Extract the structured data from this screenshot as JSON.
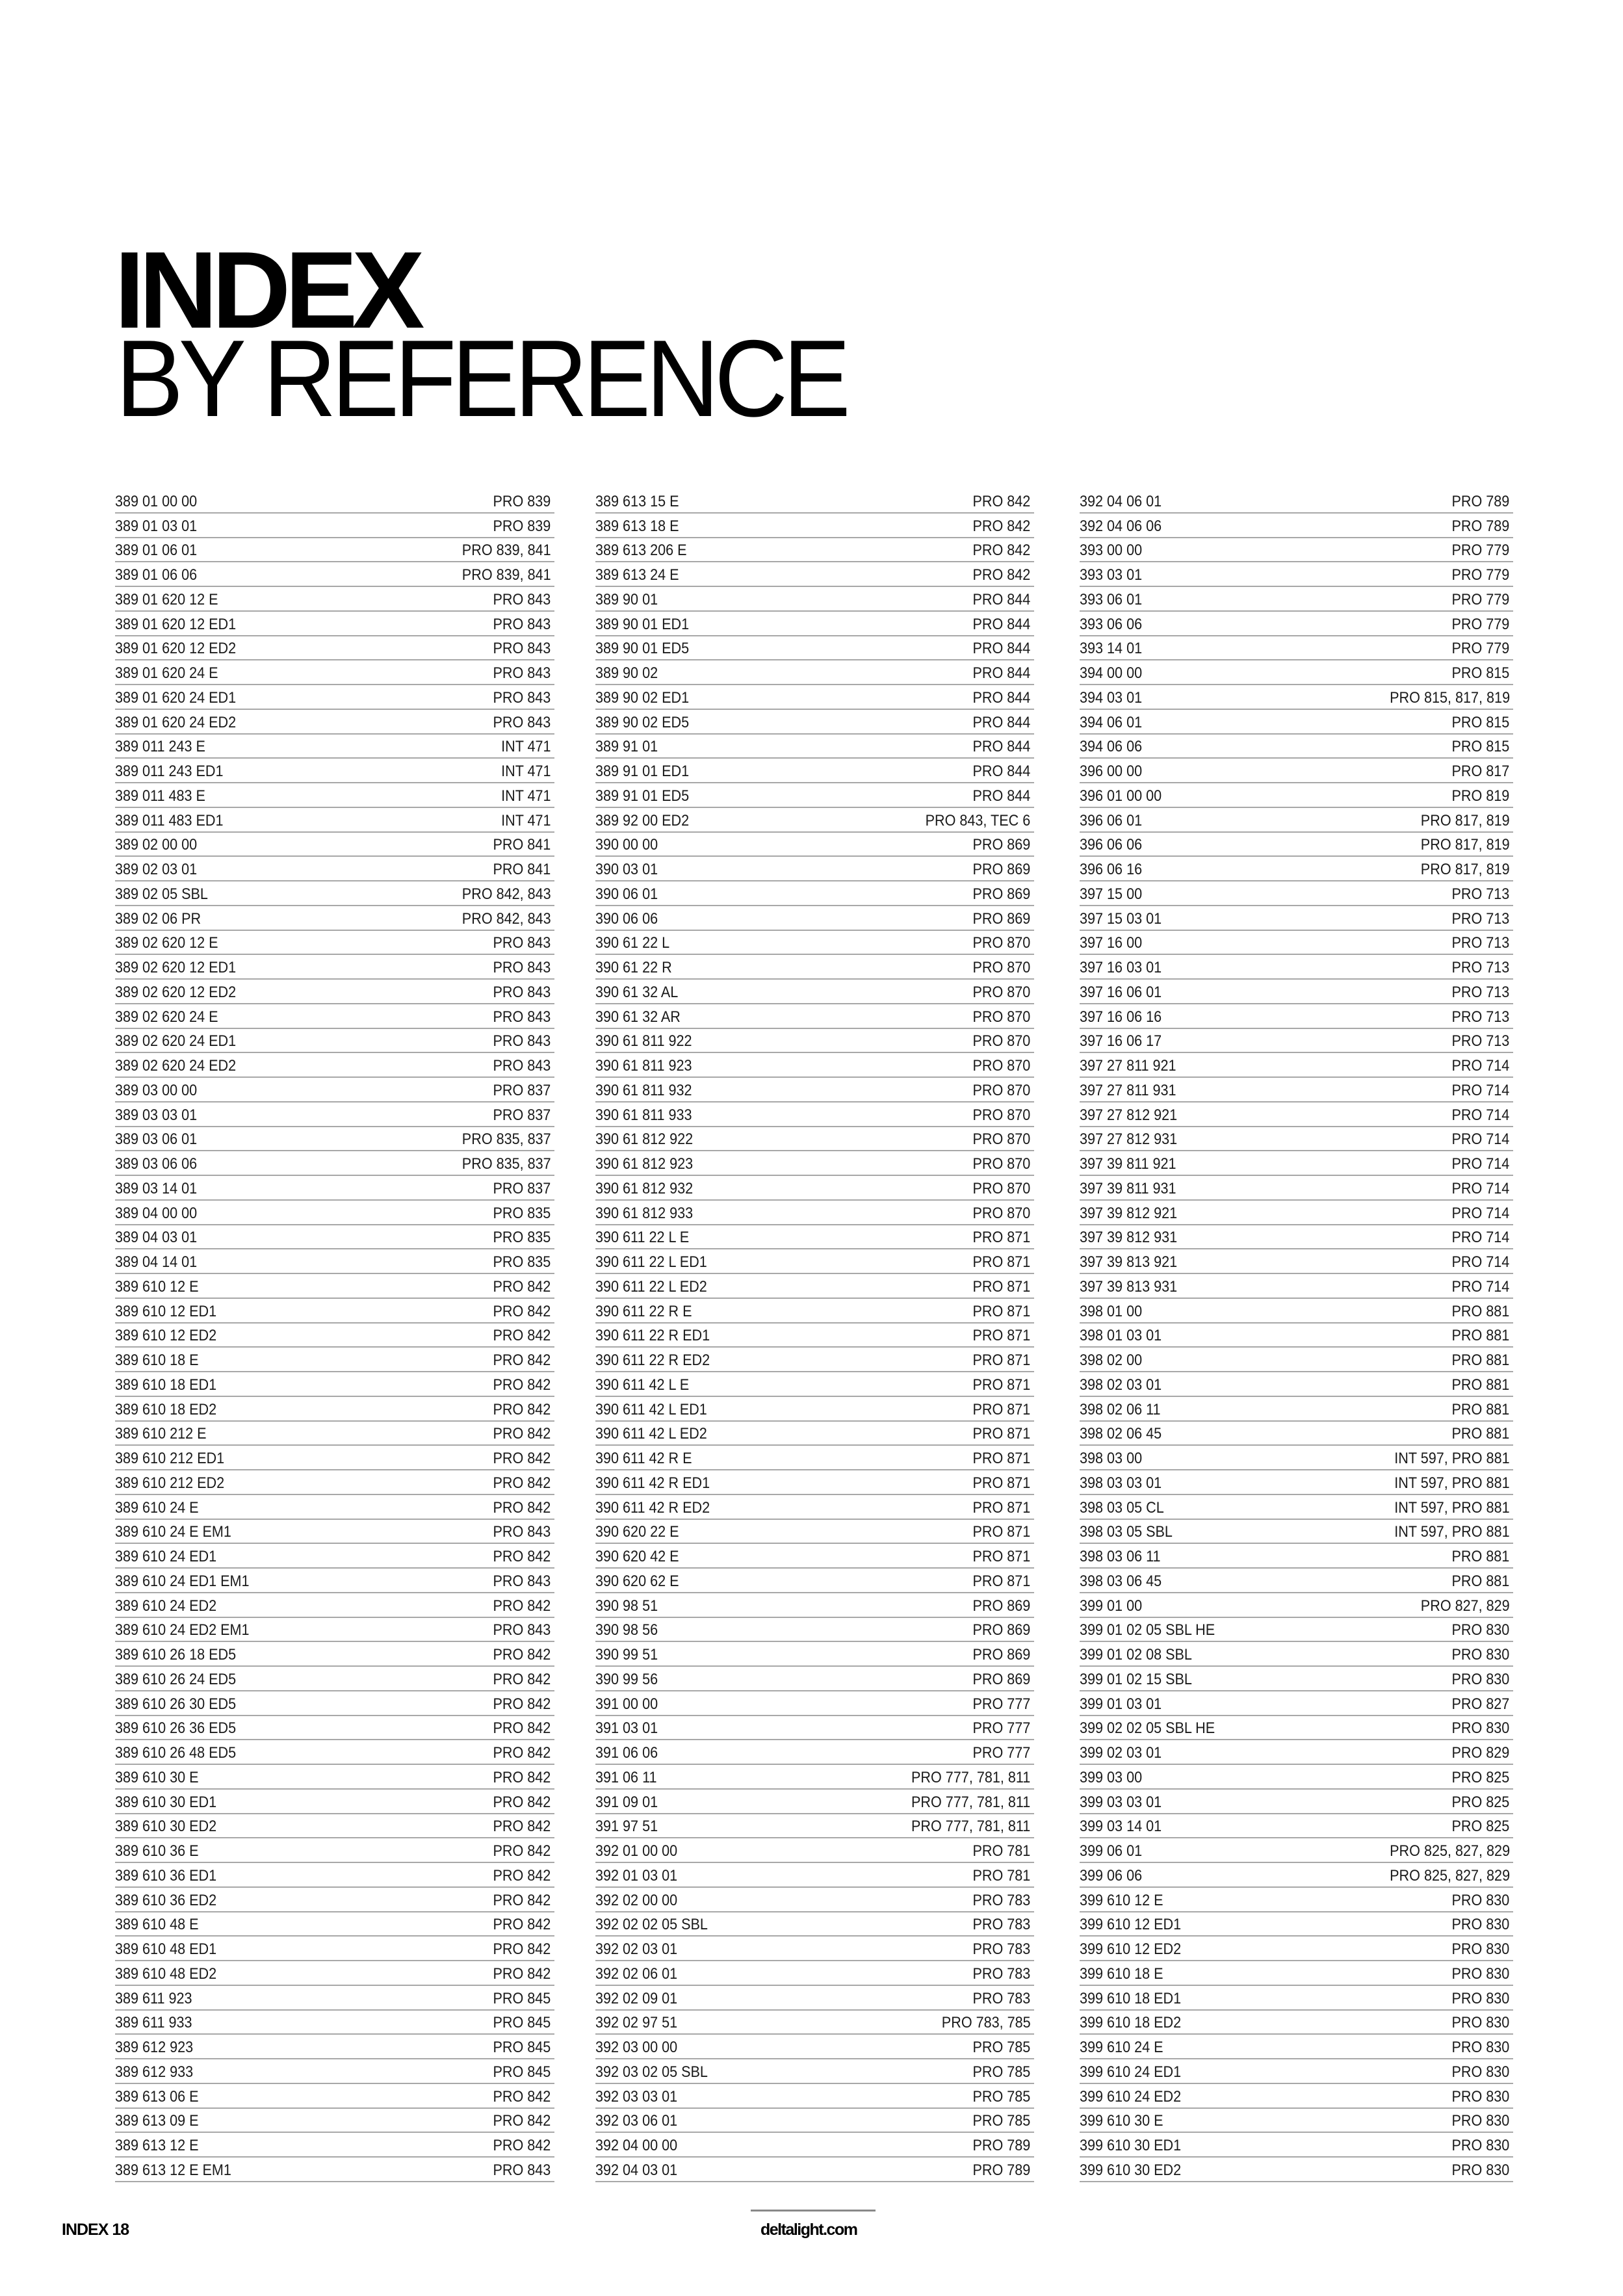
{
  "header": {
    "title_bold": "INDEX",
    "title_light": "BY REFERENCE"
  },
  "columns": [
    [
      [
        "389 01 00 00",
        "PRO 839"
      ],
      [
        "389 01 03 01",
        "PRO 839"
      ],
      [
        "389 01 06 01",
        "PRO 839, 841"
      ],
      [
        "389 01 06 06",
        "PRO 839, 841"
      ],
      [
        "389 01 620 12 E",
        "PRO 843"
      ],
      [
        "389 01 620 12 ED1",
        "PRO 843"
      ],
      [
        "389 01 620 12 ED2",
        "PRO 843"
      ],
      [
        "389 01 620 24 E",
        "PRO 843"
      ],
      [
        "389 01 620 24 ED1",
        "PRO 843"
      ],
      [
        "389 01 620 24 ED2",
        "PRO 843"
      ],
      [
        "389 011 243 E",
        "INT 471"
      ],
      [
        "389 011 243 ED1",
        "INT 471"
      ],
      [
        "389 011 483 E",
        "INT 471"
      ],
      [
        "389 011 483 ED1",
        "INT 471"
      ],
      [
        "389 02 00 00",
        "PRO 841"
      ],
      [
        "389 02 03 01",
        "PRO 841"
      ],
      [
        "389 02 05 SBL",
        "PRO 842, 843"
      ],
      [
        "389 02 06 PR",
        "PRO 842, 843"
      ],
      [
        "389 02 620 12 E",
        "PRO 843"
      ],
      [
        "389 02 620 12 ED1",
        "PRO 843"
      ],
      [
        "389 02 620 12 ED2",
        "PRO 843"
      ],
      [
        "389 02 620 24 E",
        "PRO 843"
      ],
      [
        "389 02 620 24 ED1",
        "PRO 843"
      ],
      [
        "389 02 620 24 ED2",
        "PRO 843"
      ],
      [
        "389 03 00 00",
        "PRO 837"
      ],
      [
        "389 03 03 01",
        "PRO 837"
      ],
      [
        "389 03 06 01",
        "PRO 835, 837"
      ],
      [
        "389 03 06 06",
        "PRO 835, 837"
      ],
      [
        "389 03 14 01",
        "PRO 837"
      ],
      [
        "389 04 00 00",
        "PRO 835"
      ],
      [
        "389 04 03 01",
        "PRO 835"
      ],
      [
        "389 04 14 01",
        "PRO 835"
      ],
      [
        "389 610 12 E",
        "PRO 842"
      ],
      [
        "389 610 12 ED1",
        "PRO 842"
      ],
      [
        "389 610 12 ED2",
        "PRO 842"
      ],
      [
        "389 610 18 E",
        "PRO 842"
      ],
      [
        "389 610 18 ED1",
        "PRO 842"
      ],
      [
        "389 610 18 ED2",
        "PRO 842"
      ],
      [
        "389 610 212 E",
        "PRO 842"
      ],
      [
        "389 610 212 ED1",
        "PRO 842"
      ],
      [
        "389 610 212 ED2",
        "PRO 842"
      ],
      [
        "389 610 24 E",
        "PRO 842"
      ],
      [
        "389 610 24 E EM1",
        "PRO 843"
      ],
      [
        "389 610 24 ED1",
        "PRO 842"
      ],
      [
        "389 610 24 ED1 EM1",
        "PRO 843"
      ],
      [
        "389 610 24 ED2",
        "PRO 842"
      ],
      [
        "389 610 24 ED2 EM1",
        "PRO 843"
      ],
      [
        "389 610 26 18 ED5",
        "PRO 842"
      ],
      [
        "389 610 26 24 ED5",
        "PRO 842"
      ],
      [
        "389 610 26 30 ED5",
        "PRO 842"
      ],
      [
        "389 610 26 36 ED5",
        "PRO 842"
      ],
      [
        "389 610 26 48 ED5",
        "PRO 842"
      ],
      [
        "389 610 30 E",
        "PRO 842"
      ],
      [
        "389 610 30 ED1",
        "PRO 842"
      ],
      [
        "389 610 30 ED2",
        "PRO 842"
      ],
      [
        "389 610 36 E",
        "PRO 842"
      ],
      [
        "389 610 36 ED1",
        "PRO 842"
      ],
      [
        "389 610 36 ED2",
        "PRO 842"
      ],
      [
        "389 610 48 E",
        "PRO 842"
      ],
      [
        "389 610 48 ED1",
        "PRO 842"
      ],
      [
        "389 610 48 ED2",
        "PRO 842"
      ],
      [
        "389 611 923",
        "PRO 845"
      ],
      [
        "389 611 933",
        "PRO 845"
      ],
      [
        "389 612 923",
        "PRO 845"
      ],
      [
        "389 612 933",
        "PRO 845"
      ],
      [
        "389 613 06 E",
        "PRO 842"
      ],
      [
        "389 613 09 E",
        "PRO 842"
      ],
      [
        "389 613 12 E",
        "PRO 842"
      ],
      [
        "389 613 12 E EM1",
        "PRO 843"
      ]
    ],
    [
      [
        "389 613 15 E",
        "PRO 842"
      ],
      [
        "389 613 18 E",
        "PRO 842"
      ],
      [
        "389 613 206 E",
        "PRO 842"
      ],
      [
        "389 613 24 E",
        "PRO 842"
      ],
      [
        "389 90 01",
        "PRO 844"
      ],
      [
        "389 90 01 ED1",
        "PRO 844"
      ],
      [
        "389 90 01 ED5",
        "PRO 844"
      ],
      [
        "389 90 02",
        "PRO 844"
      ],
      [
        "389 90 02 ED1",
        "PRO 844"
      ],
      [
        "389 90 02 ED5",
        "PRO 844"
      ],
      [
        "389 91 01",
        "PRO 844"
      ],
      [
        "389 91 01 ED1",
        "PRO 844"
      ],
      [
        "389 91 01 ED5",
        "PRO 844"
      ],
      [
        "389 92 00 ED2",
        "PRO 843, TEC 6"
      ],
      [
        "390 00 00",
        "PRO 869"
      ],
      [
        "390 03 01",
        "PRO 869"
      ],
      [
        "390 06 01",
        "PRO 869"
      ],
      [
        "390 06 06",
        "PRO 869"
      ],
      [
        "390 61 22 L",
        "PRO 870"
      ],
      [
        "390 61 22 R",
        "PRO 870"
      ],
      [
        "390 61 32 AL",
        "PRO 870"
      ],
      [
        "390 61 32 AR",
        "PRO 870"
      ],
      [
        "390 61 811 922",
        "PRO 870"
      ],
      [
        "390 61 811 923",
        "PRO 870"
      ],
      [
        "390 61 811 932",
        "PRO 870"
      ],
      [
        "390 61 811 933",
        "PRO 870"
      ],
      [
        "390 61 812 922",
        "PRO 870"
      ],
      [
        "390 61 812 923",
        "PRO 870"
      ],
      [
        "390 61 812 932",
        "PRO 870"
      ],
      [
        "390 61 812 933",
        "PRO 870"
      ],
      [
        "390 611 22 L E",
        "PRO 871"
      ],
      [
        "390 611 22 L ED1",
        "PRO 871"
      ],
      [
        "390 611 22 L ED2",
        "PRO 871"
      ],
      [
        "390 611 22 R E",
        "PRO 871"
      ],
      [
        "390 611 22 R ED1",
        "PRO 871"
      ],
      [
        "390 611 22 R ED2",
        "PRO 871"
      ],
      [
        "390 611 42 L E",
        "PRO 871"
      ],
      [
        "390 611 42 L ED1",
        "PRO 871"
      ],
      [
        "390 611 42 L ED2",
        "PRO 871"
      ],
      [
        "390 611 42 R E",
        "PRO 871"
      ],
      [
        "390 611 42 R ED1",
        "PRO 871"
      ],
      [
        "390 611 42 R ED2",
        "PRO 871"
      ],
      [
        "390 620 22 E",
        "PRO 871"
      ],
      [
        "390 620 42 E",
        "PRO 871"
      ],
      [
        "390 620 62 E",
        "PRO 871"
      ],
      [
        "390 98 51",
        "PRO 869"
      ],
      [
        "390 98 56",
        "PRO 869"
      ],
      [
        "390 99 51",
        "PRO 869"
      ],
      [
        "390 99 56",
        "PRO 869"
      ],
      [
        "391 00 00",
        "PRO 777"
      ],
      [
        "391 03 01",
        "PRO 777"
      ],
      [
        "391 06 06",
        "PRO 777"
      ],
      [
        "391 06 11",
        "PRO 777, 781, 811"
      ],
      [
        "391 09 01",
        "PRO 777, 781, 811"
      ],
      [
        "391 97 51",
        "PRO 777, 781, 811"
      ],
      [
        "392 01 00 00",
        "PRO 781"
      ],
      [
        "392 01 03 01",
        "PRO 781"
      ],
      [
        "392 02 00 00",
        "PRO 783"
      ],
      [
        "392 02 02 05 SBL",
        "PRO 783"
      ],
      [
        "392 02 03 01",
        "PRO 783"
      ],
      [
        "392 02 06 01",
        "PRO 783"
      ],
      [
        "392 02 09 01",
        "PRO 783"
      ],
      [
        "392 02 97 51",
        "PRO 783, 785"
      ],
      [
        "392 03 00 00",
        "PRO 785"
      ],
      [
        "392 03 02 05 SBL",
        "PRO 785"
      ],
      [
        "392 03 03 01",
        "PRO 785"
      ],
      [
        "392 03 06 01",
        "PRO 785"
      ],
      [
        "392 04 00 00",
        "PRO 789"
      ],
      [
        "392 04 03 01",
        "PRO 789"
      ]
    ],
    [
      [
        "392 04 06 01",
        "PRO 789"
      ],
      [
        "392 04 06 06",
        "PRO 789"
      ],
      [
        "393 00 00",
        "PRO 779"
      ],
      [
        "393 03 01",
        "PRO 779"
      ],
      [
        "393 06 01",
        "PRO 779"
      ],
      [
        "393 06 06",
        "PRO 779"
      ],
      [
        "393 14 01",
        "PRO 779"
      ],
      [
        "394 00 00",
        "PRO 815"
      ],
      [
        "394 03 01",
        "PRO 815, 817, 819"
      ],
      [
        "394 06 01",
        "PRO 815"
      ],
      [
        "394 06 06",
        "PRO 815"
      ],
      [
        "396 00 00",
        "PRO 817"
      ],
      [
        "396 01 00 00",
        "PRO 819"
      ],
      [
        "396 06 01",
        "PRO 817, 819"
      ],
      [
        "396 06 06",
        "PRO 817, 819"
      ],
      [
        "396 06 16",
        "PRO 817, 819"
      ],
      [
        "397 15 00",
        "PRO 713"
      ],
      [
        "397 15 03 01",
        "PRO 713"
      ],
      [
        "397 16 00",
        "PRO 713"
      ],
      [
        "397 16 03 01",
        "PRO 713"
      ],
      [
        "397 16 06 01",
        "PRO 713"
      ],
      [
        "397 16 06 16",
        "PRO 713"
      ],
      [
        "397 16 06 17",
        "PRO 713"
      ],
      [
        "397 27 811 921",
        "PRO 714"
      ],
      [
        "397 27 811 931",
        "PRO 714"
      ],
      [
        "397 27 812 921",
        "PRO 714"
      ],
      [
        "397 27 812 931",
        "PRO 714"
      ],
      [
        "397 39 811 921",
        "PRO 714"
      ],
      [
        "397 39 811 931",
        "PRO 714"
      ],
      [
        "397 39 812 921",
        "PRO 714"
      ],
      [
        "397 39 812 931",
        "PRO 714"
      ],
      [
        "397 39 813 921",
        "PRO 714"
      ],
      [
        "397 39 813 931",
        "PRO 714"
      ],
      [
        "398 01 00",
        "PRO 881"
      ],
      [
        "398 01 03 01",
        "PRO 881"
      ],
      [
        "398 02 00",
        "PRO 881"
      ],
      [
        "398 02 03 01",
        "PRO 881"
      ],
      [
        "398 02 06 11",
        "PRO 881"
      ],
      [
        "398 02 06 45",
        "PRO 881"
      ],
      [
        "398 03 00",
        "INT 597, PRO 881"
      ],
      [
        "398 03 03 01",
        "INT 597, PRO 881"
      ],
      [
        "398 03 05 CL",
        "INT 597, PRO 881"
      ],
      [
        "398 03 05 SBL",
        "INT 597, PRO 881"
      ],
      [
        "398 03 06 11",
        "PRO 881"
      ],
      [
        "398 03 06 45",
        "PRO 881"
      ],
      [
        "399 01 00",
        "PRO 827, 829"
      ],
      [
        "399 01 02 05 SBL HE",
        "PRO 830"
      ],
      [
        "399 01 02 08 SBL",
        "PRO 830"
      ],
      [
        "399 01 02 15 SBL",
        "PRO 830"
      ],
      [
        "399 01 03 01",
        "PRO 827"
      ],
      [
        "399 02 02 05 SBL HE",
        "PRO 830"
      ],
      [
        "399 02 03 01",
        "PRO 829"
      ],
      [
        "399 03 00",
        "PRO 825"
      ],
      [
        "399 03 03 01",
        "PRO 825"
      ],
      [
        "399 03 14 01",
        "PRO 825"
      ],
      [
        "399 06 01",
        "PRO 825, 827, 829"
      ],
      [
        "399 06 06",
        "PRO 825, 827, 829"
      ],
      [
        "399 610 12 E",
        "PRO 830"
      ],
      [
        "399 610 12 ED1",
        "PRO 830"
      ],
      [
        "399 610 12 ED2",
        "PRO 830"
      ],
      [
        "399 610 18 E",
        "PRO 830"
      ],
      [
        "399 610 18 ED1",
        "PRO 830"
      ],
      [
        "399 610 18 ED2",
        "PRO 830"
      ],
      [
        "399 610 24 E",
        "PRO 830"
      ],
      [
        "399 610 24 ED1",
        "PRO 830"
      ],
      [
        "399 610 24 ED2",
        "PRO 830"
      ],
      [
        "399 610 30 E",
        "PRO 830"
      ],
      [
        "399 610 30 ED1",
        "PRO 830"
      ],
      [
        "399 610 30 ED2",
        "PRO 830"
      ]
    ]
  ],
  "footer": {
    "page_label": "INDEX 18",
    "website": "deltalight.com"
  }
}
